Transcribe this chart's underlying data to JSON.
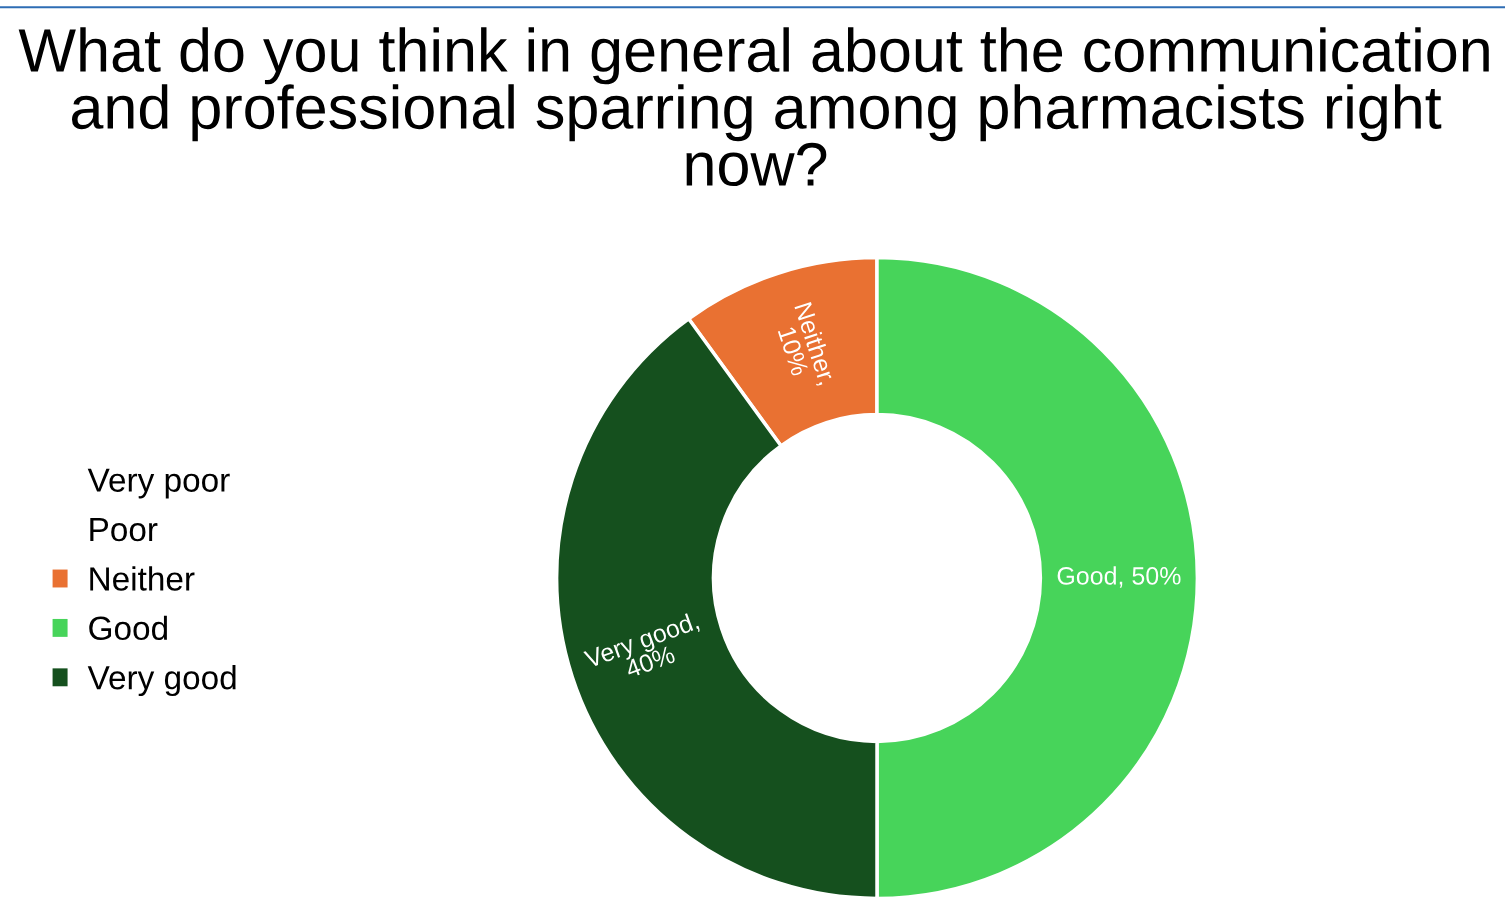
{
  "chart_data": {
    "type": "donut",
    "title": "What do you think in general about the communication and professional sparring among pharmacists right now?",
    "categories": [
      "Very poor",
      "Poor",
      "Neither",
      "Good",
      "Very good"
    ],
    "values": [
      0,
      0,
      10,
      50,
      40
    ],
    "colors": [
      "#ffffff",
      "#ffffff",
      "#e97132",
      "#47d45a",
      "#15501e"
    ],
    "value_labels": [
      null,
      null,
      "Neither, 10%",
      "Good, 50%",
      "Very good, 40%"
    ],
    "legend": "left"
  }
}
